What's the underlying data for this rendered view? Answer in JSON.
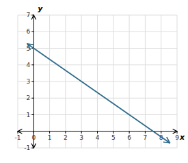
{
  "chart_data": {
    "type": "line",
    "x": [
      -0.4,
      8.55
    ],
    "values": [
      5.26668,
      -0.700285
    ],
    "color": "#2e6b8a",
    "x_label": "x",
    "y_label": "y",
    "xlim": [
      -1,
      9
    ],
    "ylim": [
      -1,
      7
    ],
    "xticks": [
      -1,
      0,
      1,
      2,
      3,
      4,
      5,
      6,
      7,
      8,
      9
    ],
    "yticks": [
      -1,
      1,
      2,
      3,
      4,
      5,
      6,
      7
    ],
    "grid": true
  }
}
